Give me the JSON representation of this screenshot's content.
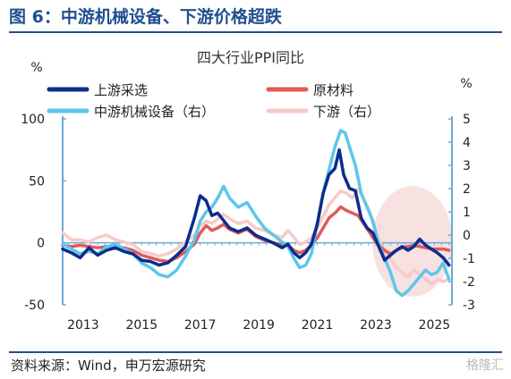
{
  "figure": {
    "title": "图 6：中游机械设备、下游价格超跌",
    "source": "资料来源：Wind，申万宏源研究",
    "watermark": "格隆汇"
  },
  "chart_data": {
    "type": "line",
    "title": "四大行业PPI同比",
    "left_axis": {
      "unit": "%",
      "min": -50,
      "max": 100,
      "ticks": [
        100,
        50,
        0,
        -50
      ]
    },
    "right_axis": {
      "unit": "%",
      "min": -3,
      "max": 5,
      "ticks": [
        5,
        4,
        3,
        2,
        1,
        0,
        -1,
        -2,
        -3
      ]
    },
    "x_ticks": [
      "2013",
      "2015",
      "2017",
      "2019",
      "2021",
      "2023",
      "2025"
    ],
    "x_range": [
      2012.3,
      2025.6
    ],
    "legend": {
      "position": "top",
      "columns": 2
    },
    "highlight": {
      "label": "",
      "x_range": [
        2023.0,
        2025.5
      ],
      "color": "#f5dada"
    },
    "series": [
      {
        "name": "上游采选",
        "axis": "left",
        "color": "#0b2d8c",
        "width": 3.5,
        "points": [
          [
            2012.3,
            -5
          ],
          [
            2012.6,
            -8
          ],
          [
            2012.9,
            -12
          ],
          [
            2013.2,
            -4
          ],
          [
            2013.5,
            -10
          ],
          [
            2013.8,
            -6
          ],
          [
            2014.1,
            -4
          ],
          [
            2014.4,
            -7
          ],
          [
            2014.7,
            -9
          ],
          [
            2015.0,
            -14
          ],
          [
            2015.3,
            -15
          ],
          [
            2015.6,
            -18
          ],
          [
            2015.9,
            -16
          ],
          [
            2016.2,
            -10
          ],
          [
            2016.5,
            -3
          ],
          [
            2016.8,
            20
          ],
          [
            2017.0,
            38
          ],
          [
            2017.2,
            34
          ],
          [
            2017.4,
            22
          ],
          [
            2017.6,
            24
          ],
          [
            2017.8,
            18
          ],
          [
            2018.0,
            12
          ],
          [
            2018.3,
            9
          ],
          [
            2018.6,
            12
          ],
          [
            2018.9,
            6
          ],
          [
            2019.2,
            3
          ],
          [
            2019.5,
            0
          ],
          [
            2019.8,
            -4
          ],
          [
            2020.0,
            -1
          ],
          [
            2020.2,
            -8
          ],
          [
            2020.4,
            -12
          ],
          [
            2020.6,
            -8
          ],
          [
            2020.8,
            -1
          ],
          [
            2021.0,
            15
          ],
          [
            2021.2,
            40
          ],
          [
            2021.4,
            55
          ],
          [
            2021.6,
            60
          ],
          [
            2021.75,
            75
          ],
          [
            2021.9,
            55
          ],
          [
            2022.1,
            44
          ],
          [
            2022.3,
            42
          ],
          [
            2022.5,
            20
          ],
          [
            2022.7,
            12
          ],
          [
            2022.9,
            8
          ],
          [
            2023.1,
            -3
          ],
          [
            2023.3,
            -14
          ],
          [
            2023.5,
            -10
          ],
          [
            2023.7,
            -6
          ],
          [
            2023.9,
            -3
          ],
          [
            2024.1,
            -6
          ],
          [
            2024.3,
            -3
          ],
          [
            2024.5,
            3
          ],
          [
            2024.7,
            -2
          ],
          [
            2024.9,
            -5
          ],
          [
            2025.1,
            -8
          ],
          [
            2025.3,
            -12
          ],
          [
            2025.5,
            -18
          ]
        ]
      },
      {
        "name": "原材料",
        "axis": "left",
        "color": "#e05a5a",
        "width": 3.5,
        "points": [
          [
            2012.3,
            -2
          ],
          [
            2012.6,
            -3
          ],
          [
            2012.9,
            -2
          ],
          [
            2013.2,
            -3
          ],
          [
            2013.5,
            -4
          ],
          [
            2013.8,
            -3
          ],
          [
            2014.1,
            -3
          ],
          [
            2014.4,
            -4
          ],
          [
            2014.7,
            -6
          ],
          [
            2015.0,
            -10
          ],
          [
            2015.3,
            -12
          ],
          [
            2015.6,
            -14
          ],
          [
            2015.9,
            -15
          ],
          [
            2016.2,
            -12
          ],
          [
            2016.5,
            -7
          ],
          [
            2016.8,
            -1
          ],
          [
            2017.0,
            8
          ],
          [
            2017.2,
            14
          ],
          [
            2017.4,
            10
          ],
          [
            2017.6,
            12
          ],
          [
            2017.8,
            15
          ],
          [
            2018.0,
            11
          ],
          [
            2018.3,
            8
          ],
          [
            2018.6,
            11
          ],
          [
            2018.9,
            5
          ],
          [
            2019.2,
            2
          ],
          [
            2019.5,
            0
          ],
          [
            2019.8,
            -2
          ],
          [
            2020.0,
            -2
          ],
          [
            2020.2,
            -6
          ],
          [
            2020.4,
            -8
          ],
          [
            2020.6,
            -6
          ],
          [
            2020.8,
            -2
          ],
          [
            2021.0,
            4
          ],
          [
            2021.2,
            12
          ],
          [
            2021.4,
            20
          ],
          [
            2021.6,
            24
          ],
          [
            2021.8,
            29
          ],
          [
            2022.0,
            26
          ],
          [
            2022.2,
            24
          ],
          [
            2022.4,
            22
          ],
          [
            2022.6,
            15
          ],
          [
            2022.8,
            8
          ],
          [
            2022.9,
            4
          ],
          [
            2023.1,
            -2
          ],
          [
            2023.3,
            -6
          ],
          [
            2023.5,
            -9
          ],
          [
            2023.7,
            -6
          ],
          [
            2023.9,
            -4
          ],
          [
            2024.1,
            -3
          ],
          [
            2024.3,
            -2
          ],
          [
            2024.5,
            -3
          ],
          [
            2024.7,
            -4
          ],
          [
            2024.9,
            -5
          ],
          [
            2025.1,
            -5
          ],
          [
            2025.3,
            -5
          ],
          [
            2025.5,
            -6
          ]
        ]
      },
      {
        "name": "中游机械设备（右）",
        "axis": "right",
        "color": "#5dc6ec",
        "width": 3.5,
        "points": [
          [
            2012.3,
            -0.4
          ],
          [
            2012.6,
            -0.6
          ],
          [
            2012.9,
            -0.8
          ],
          [
            2013.2,
            -0.7
          ],
          [
            2013.5,
            -0.8
          ],
          [
            2013.8,
            -0.5
          ],
          [
            2014.1,
            -0.4
          ],
          [
            2014.4,
            -0.6
          ],
          [
            2014.7,
            -0.8
          ],
          [
            2015.0,
            -1.2
          ],
          [
            2015.3,
            -1.4
          ],
          [
            2015.6,
            -1.7
          ],
          [
            2015.9,
            -1.8
          ],
          [
            2016.2,
            -1.5
          ],
          [
            2016.5,
            -0.9
          ],
          [
            2016.8,
            -0.2
          ],
          [
            2017.0,
            0.6
          ],
          [
            2017.2,
            1.0
          ],
          [
            2017.4,
            1.2
          ],
          [
            2017.6,
            1.6
          ],
          [
            2017.8,
            2.1
          ],
          [
            2018.0,
            1.6
          ],
          [
            2018.3,
            1.2
          ],
          [
            2018.6,
            1.4
          ],
          [
            2018.9,
            0.8
          ],
          [
            2019.2,
            0.3
          ],
          [
            2019.5,
            0.0
          ],
          [
            2019.8,
            -0.3
          ],
          [
            2020.0,
            -0.5
          ],
          [
            2020.2,
            -1.0
          ],
          [
            2020.4,
            -1.4
          ],
          [
            2020.6,
            -1.3
          ],
          [
            2020.8,
            -0.8
          ],
          [
            2021.0,
            0.5
          ],
          [
            2021.2,
            1.8
          ],
          [
            2021.4,
            2.8
          ],
          [
            2021.6,
            3.8
          ],
          [
            2021.8,
            4.5
          ],
          [
            2021.95,
            4.4
          ],
          [
            2022.1,
            3.8
          ],
          [
            2022.3,
            3.0
          ],
          [
            2022.5,
            1.8
          ],
          [
            2022.7,
            1.2
          ],
          [
            2022.9,
            0.6
          ],
          [
            2023.1,
            -0.4
          ],
          [
            2023.3,
            -1.0
          ],
          [
            2023.5,
            -1.6
          ],
          [
            2023.7,
            -2.4
          ],
          [
            2023.9,
            -2.6
          ],
          [
            2024.1,
            -2.4
          ],
          [
            2024.3,
            -2.1
          ],
          [
            2024.5,
            -1.8
          ],
          [
            2024.7,
            -1.5
          ],
          [
            2024.9,
            -1.7
          ],
          [
            2025.1,
            -1.6
          ],
          [
            2025.3,
            -1.2
          ],
          [
            2025.5,
            -1.9
          ]
        ]
      },
      {
        "name": "下游（右）",
        "axis": "right",
        "color": "#f7caca",
        "width": 3.5,
        "points": [
          [
            2012.3,
            0.1
          ],
          [
            2012.6,
            -0.2
          ],
          [
            2012.9,
            -0.2
          ],
          [
            2013.2,
            -0.3
          ],
          [
            2013.5,
            -0.1
          ],
          [
            2013.8,
            0.0
          ],
          [
            2014.1,
            -0.2
          ],
          [
            2014.4,
            -0.3
          ],
          [
            2014.7,
            -0.4
          ],
          [
            2015.0,
            -0.7
          ],
          [
            2015.3,
            -0.8
          ],
          [
            2015.6,
            -0.9
          ],
          [
            2015.9,
            -0.8
          ],
          [
            2016.2,
            -0.6
          ],
          [
            2016.5,
            -0.3
          ],
          [
            2016.8,
            0.0
          ],
          [
            2017.0,
            0.4
          ],
          [
            2017.2,
            0.6
          ],
          [
            2017.4,
            0.5
          ],
          [
            2017.6,
            0.7
          ],
          [
            2017.8,
            0.9
          ],
          [
            2018.0,
            0.7
          ],
          [
            2018.3,
            0.5
          ],
          [
            2018.6,
            0.6
          ],
          [
            2018.9,
            0.3
          ],
          [
            2019.2,
            0.2
          ],
          [
            2019.5,
            0.0
          ],
          [
            2019.8,
            -0.1
          ],
          [
            2020.0,
            0.2
          ],
          [
            2020.2,
            -0.1
          ],
          [
            2020.4,
            -0.4
          ],
          [
            2020.6,
            -0.3
          ],
          [
            2020.8,
            -0.1
          ],
          [
            2021.0,
            0.3
          ],
          [
            2021.2,
            0.8
          ],
          [
            2021.4,
            1.3
          ],
          [
            2021.6,
            1.6
          ],
          [
            2021.8,
            1.9
          ],
          [
            2022.0,
            1.8
          ],
          [
            2022.2,
            1.6
          ],
          [
            2022.4,
            2.0
          ],
          [
            2022.6,
            1.5
          ],
          [
            2022.8,
            1.0
          ],
          [
            2022.9,
            0.5
          ],
          [
            2023.1,
            -0.2
          ],
          [
            2023.3,
            -0.7
          ],
          [
            2023.5,
            -1.0
          ],
          [
            2023.7,
            -1.4
          ],
          [
            2023.9,
            -1.6
          ],
          [
            2024.1,
            -1.8
          ],
          [
            2024.3,
            -1.5
          ],
          [
            2024.5,
            -1.7
          ],
          [
            2024.7,
            -1.9
          ],
          [
            2024.9,
            -2.1
          ],
          [
            2025.1,
            -1.9
          ],
          [
            2025.3,
            -2.0
          ],
          [
            2025.5,
            -1.9
          ]
        ]
      }
    ]
  }
}
